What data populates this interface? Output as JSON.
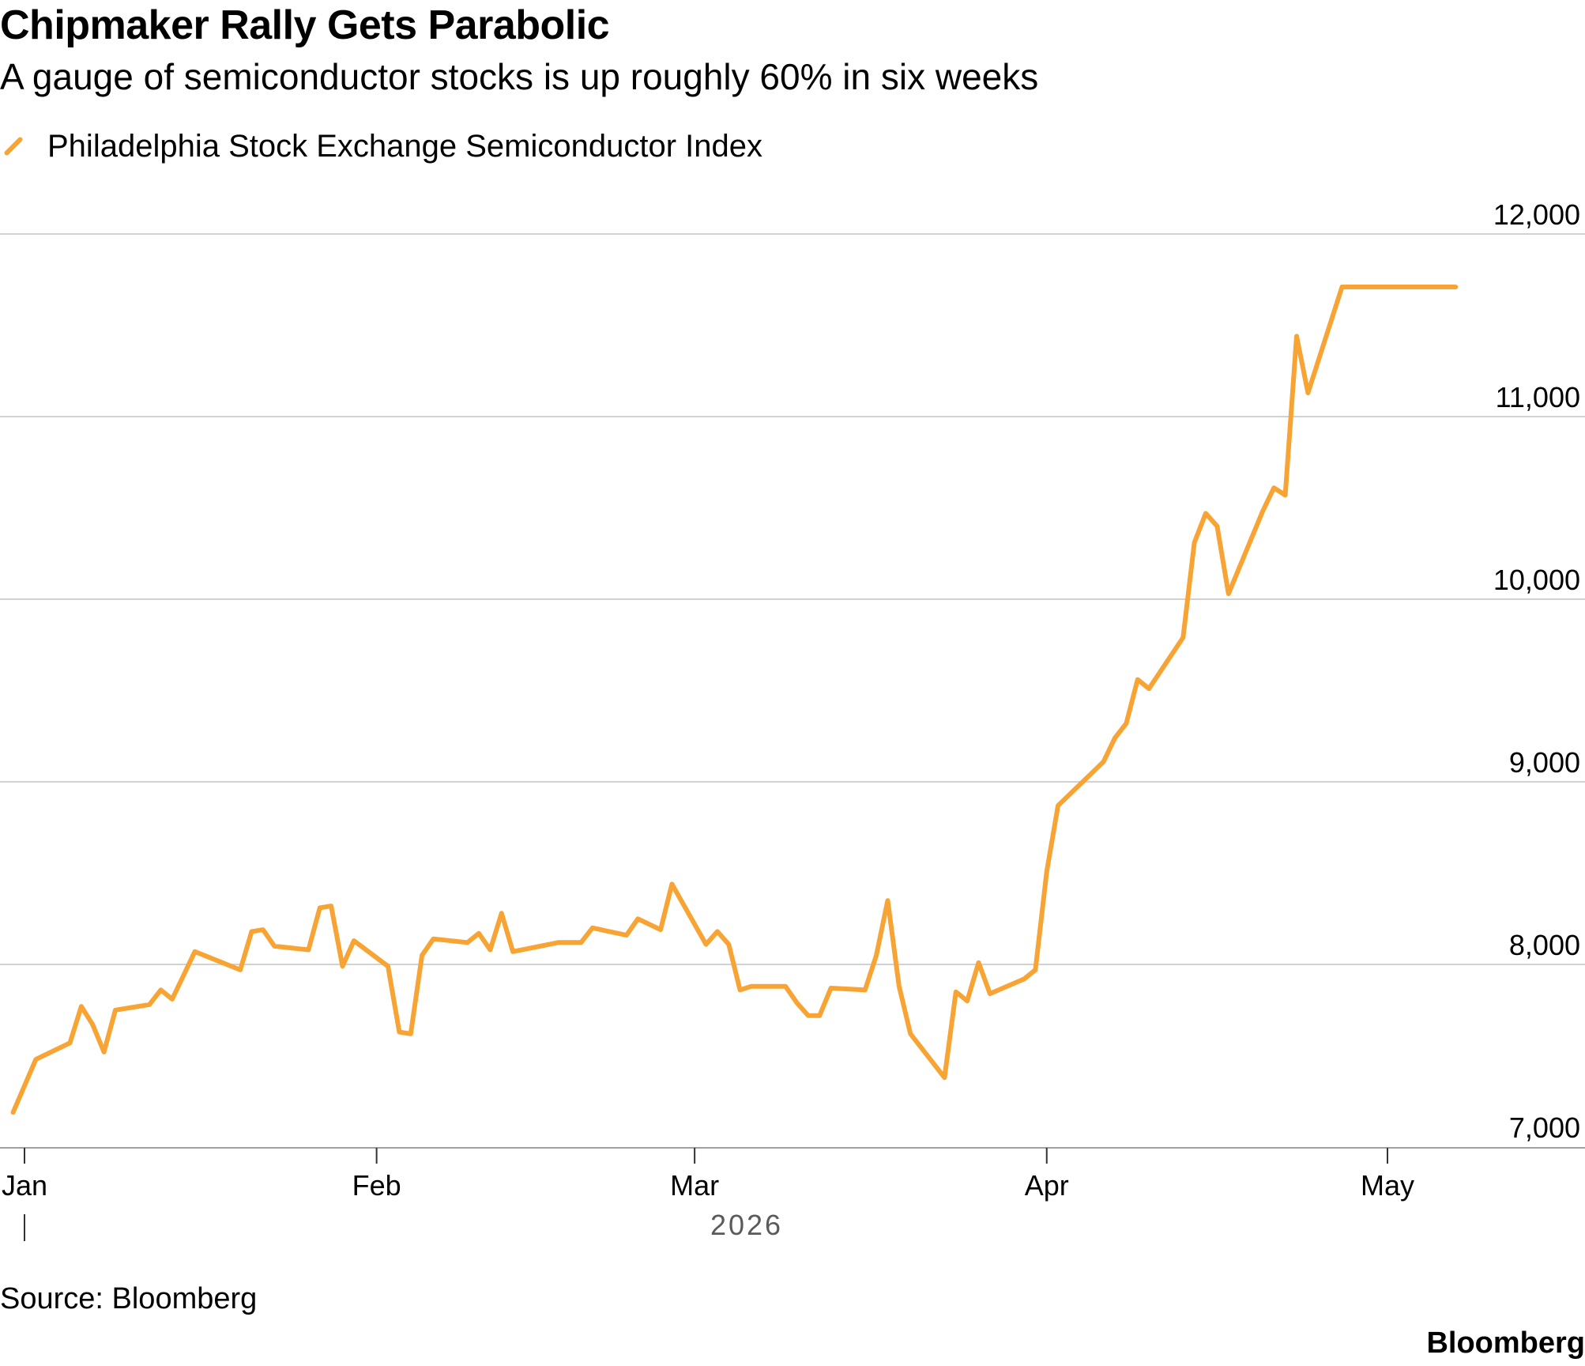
{
  "header": {
    "title": "Chipmaker Rally Gets Parabolic",
    "subtitle": "A gauge of semiconductor stocks is up roughly 60% in six weeks"
  },
  "footer": {
    "source": "Source: Bloomberg",
    "brand": "Bloomberg"
  },
  "colors": {
    "series": "#F7A434",
    "grid": "#D2D2D2",
    "axis": "#A0A0A0",
    "text": "#000000",
    "year_label": "#5A5A5A"
  },
  "chart_data": {
    "type": "line",
    "legend_position": "top-left",
    "grid": "horizontal",
    "y_axis_side": "right",
    "ylim": [
      7000,
      12000
    ],
    "xlim": [
      "2026-01-01",
      "2026-05-08"
    ],
    "y_ticks": [
      {
        "value": 12000,
        "label": "12,000"
      },
      {
        "value": 11000,
        "label": "11,000"
      },
      {
        "value": 10000,
        "label": "10,000"
      },
      {
        "value": 9000,
        "label": "9,000"
      },
      {
        "value": 8000,
        "label": "8,000"
      },
      {
        "value": 7000,
        "label": "7,000"
      }
    ],
    "x_ticks": [
      {
        "date": "2026-01-01",
        "label": "Jan"
      },
      {
        "date": "2026-02-01",
        "label": "Feb"
      },
      {
        "date": "2026-03-01",
        "label": "Mar"
      },
      {
        "date": "2026-04-01",
        "label": "Apr"
      },
      {
        "date": "2026-05-01",
        "label": "May"
      }
    ],
    "year_label": "2026",
    "series": [
      {
        "name": "Philadelphia Stock Exchange Semiconductor Index",
        "x": [
          "2025-12-31",
          "2026-01-02",
          "2026-01-05",
          "2026-01-06",
          "2026-01-07",
          "2026-01-08",
          "2026-01-09",
          "2026-01-12",
          "2026-01-13",
          "2026-01-14",
          "2026-01-15",
          "2026-01-16",
          "2026-01-20",
          "2026-01-21",
          "2026-01-22",
          "2026-01-23",
          "2026-01-26",
          "2026-01-27",
          "2026-01-28",
          "2026-01-29",
          "2026-01-30",
          "2026-02-02",
          "2026-02-03",
          "2026-02-04",
          "2026-02-05",
          "2026-02-06",
          "2026-02-09",
          "2026-02-10",
          "2026-02-11",
          "2026-02-12",
          "2026-02-13",
          "2026-02-17",
          "2026-02-18",
          "2026-02-19",
          "2026-02-20",
          "2026-02-23",
          "2026-02-24",
          "2026-02-25",
          "2026-02-26",
          "2026-02-27",
          "2026-03-02",
          "2026-03-03",
          "2026-03-04",
          "2026-03-05",
          "2026-03-06",
          "2026-03-09",
          "2026-03-10",
          "2026-03-11",
          "2026-03-12",
          "2026-03-13",
          "2026-03-16",
          "2026-03-17",
          "2026-03-18",
          "2026-03-19",
          "2026-03-20",
          "2026-03-23",
          "2026-03-24",
          "2026-03-25",
          "2026-03-26",
          "2026-03-27",
          "2026-03-30",
          "2026-03-31",
          "2026-04-01",
          "2026-04-02",
          "2026-04-06",
          "2026-04-07",
          "2026-04-08",
          "2026-04-09",
          "2026-04-10",
          "2026-04-13",
          "2026-04-14",
          "2026-04-15",
          "2026-04-16",
          "2026-04-17",
          "2026-04-20",
          "2026-04-21",
          "2026-04-22",
          "2026-04-23",
          "2026-04-24",
          "2026-04-27",
          "2026-04-28",
          "2026-04-29",
          "2026-04-30",
          "2026-05-01",
          "2026-05-04",
          "2026-05-05",
          "2026-05-06",
          "2026-05-07"
        ],
        "values": [
          7190,
          7480,
          7570,
          7770,
          7670,
          7520,
          7750,
          7780,
          7860,
          7810,
          7940,
          8070,
          7970,
          8180,
          8190,
          8100,
          8080,
          8310,
          8320,
          7990,
          8130,
          7990,
          7630,
          7620,
          8050,
          8140,
          8120,
          8170,
          8080,
          8280,
          8070,
          8120,
          8120,
          8120,
          8200,
          8160,
          8250,
          8220,
          8190,
          8440,
          8110,
          8180,
          8110,
          7860,
          7880,
          7880,
          7790,
          7720,
          7720,
          7870,
          7860,
          8050,
          8350,
          7880,
          7620,
          7380,
          7850,
          7800,
          8010,
          7840,
          7920,
          7970,
          8510,
          8870,
          9110,
          9240,
          9320,
          9560,
          9510,
          9790,
          10310,
          10470,
          10400,
          10030,
          10480,
          10610,
          10570,
          11440,
          11130,
          11710,
          11710,
          11710,
          11710,
          11710,
          11710,
          11710,
          11710,
          11710
        ]
      }
    ]
  }
}
